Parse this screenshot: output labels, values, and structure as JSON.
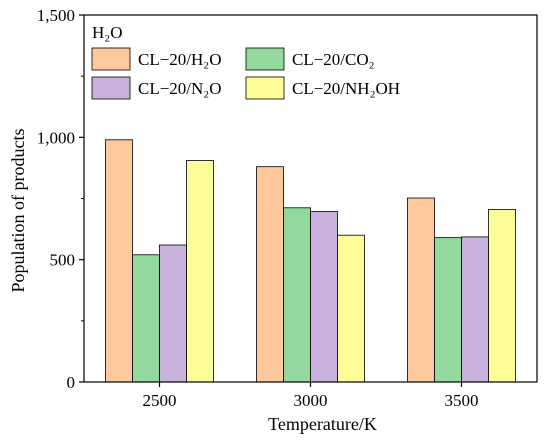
{
  "chart_data": {
    "type": "bar",
    "title": "H₂O",
    "xlabel": "Temperature/K",
    "ylabel": "Population of products",
    "categories": [
      "2500",
      "3000",
      "3500"
    ],
    "ylim": [
      0,
      1500
    ],
    "yticks": [
      0,
      500,
      1000,
      1500
    ],
    "ytick_labels": [
      "0",
      "500",
      "1,000",
      "1,500"
    ],
    "grid": false,
    "legend_position": "top-left",
    "series": [
      {
        "name": "CL−20/H₂O",
        "values": [
          990,
          880,
          752
        ],
        "color": "#FCC89C"
      },
      {
        "name": "CL−20/CO₂",
        "values": [
          520,
          712,
          590
        ],
        "color": "#93D99E"
      },
      {
        "name": "CL−20/N₂O",
        "values": [
          560,
          697,
          593
        ],
        "color": "#C9B3DC"
      },
      {
        "name": "CL−20/NH₂OH",
        "values": [
          905,
          600,
          705
        ],
        "color": "#FCFC98"
      }
    ]
  }
}
